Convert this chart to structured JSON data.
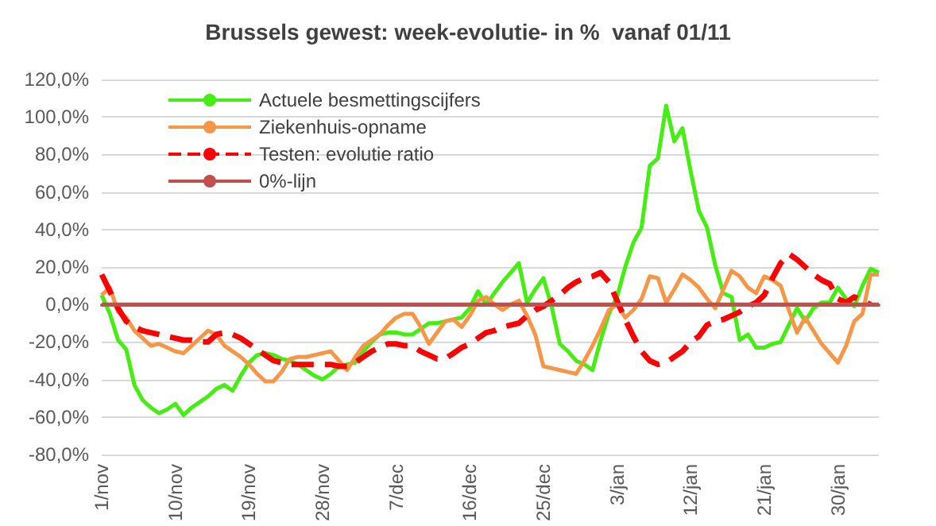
{
  "chart_data": {
    "type": "line",
    "title": "Brussels gewest: week-evolutie- in %  vanaf 01/11",
    "categories": [
      "1/nov",
      null,
      null,
      null,
      null,
      null,
      null,
      null,
      null,
      "10/nov",
      null,
      null,
      null,
      null,
      null,
      null,
      null,
      null,
      "19/nov",
      null,
      null,
      null,
      null,
      null,
      null,
      null,
      null,
      "28/nov",
      null,
      null,
      null,
      null,
      null,
      null,
      null,
      null,
      "7/dec",
      null,
      null,
      null,
      null,
      null,
      null,
      null,
      null,
      "16/dec",
      null,
      null,
      null,
      null,
      null,
      null,
      null,
      null,
      "25/dec",
      null,
      null,
      null,
      null,
      null,
      null,
      null,
      null,
      "3/jan",
      null,
      null,
      null,
      null,
      null,
      null,
      null,
      null,
      "12/jan",
      null,
      null,
      null,
      null,
      null,
      null,
      null,
      null,
      "21/jan",
      null,
      null,
      null,
      null,
      null,
      null,
      null,
      null,
      "30/jan",
      null,
      null,
      null,
      null,
      null
    ],
    "series": [
      {
        "name": "Actuele besmettingscijfers",
        "color": "#44ee11",
        "values": [
          5,
          -5,
          -19,
          -24,
          -43,
          -51,
          -55,
          -58,
          -56,
          -53,
          -59,
          -55,
          -52,
          -49,
          -45,
          -43,
          -46,
          -38,
          -31,
          -27,
          -26,
          -27,
          -29,
          -30,
          -32,
          -35,
          -38,
          -40,
          -37,
          -33,
          -32,
          -31,
          -25,
          -20,
          -16,
          -15,
          -15,
          -16,
          -16,
          -13,
          -10,
          -10,
          -9,
          -8,
          -7,
          -2,
          7,
          0,
          6,
          12,
          17,
          22,
          1,
          8,
          14,
          -1,
          -21,
          -25,
          -30,
          -32,
          -35,
          -19,
          -5,
          4,
          20,
          33,
          41,
          74,
          78,
          106,
          87,
          94,
          71,
          50,
          41,
          21,
          6,
          4,
          -19,
          -16,
          -23,
          -23,
          -21,
          -20,
          -11,
          -2,
          -9,
          -2,
          1,
          1,
          9,
          3,
          -1,
          10,
          19,
          17
        ]
      },
      {
        "name": "Ziekenhuis-opname",
        "color": "#f79646",
        "values": [
          5,
          9,
          -4,
          -7,
          -14,
          -18,
          -22,
          -21,
          -23,
          -25,
          -26,
          -22,
          -18,
          -14,
          -16,
          -22,
          -25,
          -28,
          -32,
          -37,
          -41,
          -41,
          -36,
          -29,
          -28,
          -28,
          -27,
          -26,
          -25,
          -30,
          -35,
          -28,
          -22,
          -19,
          -16,
          -11,
          -7,
          -5,
          -5,
          -12,
          -21,
          -15,
          -9,
          -8,
          -12,
          -6,
          2,
          4,
          0,
          -3,
          0,
          2,
          -6,
          -16,
          -33,
          -34,
          -35,
          -36,
          -37,
          -30,
          -22,
          -13,
          -3,
          0,
          -7,
          -3,
          3,
          15,
          14,
          1,
          8,
          16,
          13,
          9,
          3,
          -2,
          8,
          18,
          15,
          9,
          6,
          15,
          13,
          10,
          -3,
          -15,
          -7,
          -14,
          -21,
          -26,
          -31,
          -22,
          -9,
          -5,
          16,
          16
        ]
      },
      {
        "name": "Testen: evolutie ratio",
        "color": "#ff0000",
        "line_style": "dashed",
        "values": [
          16,
          7,
          -2,
          -9,
          -12,
          -14,
          -15,
          -16,
          -17,
          -18,
          -19,
          -19,
          -20,
          -20,
          -16,
          -15,
          -16,
          -18,
          -21,
          -24,
          -27,
          -30,
          -31,
          -32,
          -32,
          -32,
          -32,
          -32,
          -32,
          -33,
          -33,
          -31,
          -28,
          -25,
          -23,
          -21,
          -21,
          -22,
          -22,
          -25,
          -27,
          -29,
          -29,
          -26,
          -23,
          -21,
          -18,
          -15,
          -14,
          -12,
          -11,
          -10,
          -6,
          -3,
          -1,
          2,
          5,
          9,
          12,
          14,
          15,
          17,
          12,
          2,
          -8,
          -17,
          -25,
          -30,
          -32,
          -31,
          -28,
          -25,
          -20,
          -17,
          -11,
          -9,
          -8,
          -6,
          -4,
          -1,
          1,
          5,
          14,
          22,
          27,
          24,
          20,
          16,
          13,
          11,
          3,
          1,
          4,
          2,
          0,
          null
        ]
      },
      {
        "name": "0%-lijn",
        "color": "#c0504d",
        "values": [
          0,
          0,
          0,
          0,
          0,
          0,
          0,
          0,
          0,
          0,
          0,
          0,
          0,
          0,
          0,
          0,
          0,
          0,
          0,
          0,
          0,
          0,
          0,
          0,
          0,
          0,
          0,
          0,
          0,
          0,
          0,
          0,
          0,
          0,
          0,
          0,
          0,
          0,
          0,
          0,
          0,
          0,
          0,
          0,
          0,
          0,
          0,
          0,
          0,
          0,
          0,
          0,
          0,
          0,
          0,
          0,
          0,
          0,
          0,
          0,
          0,
          0,
          0,
          0,
          0,
          0,
          0,
          0,
          0,
          0,
          0,
          0,
          0,
          0,
          0,
          0,
          0,
          0,
          0,
          0,
          0,
          0,
          0,
          0,
          0,
          0,
          0,
          0,
          0,
          0,
          0,
          0,
          0,
          0,
          0,
          0
        ]
      }
    ],
    "ylim": [
      -80,
      120
    ],
    "yticks": [
      {
        "value": -80,
        "label": "-80,0%"
      },
      {
        "value": -60,
        "label": "-60,0%"
      },
      {
        "value": -40,
        "label": "-40,0%"
      },
      {
        "value": -20,
        "label": "-20,0%"
      },
      {
        "value": 0,
        "label": "0,0%"
      },
      {
        "value": 20,
        "label": "20,0%"
      },
      {
        "value": 40,
        "label": "40,0%"
      },
      {
        "value": 60,
        "label": "60,0%"
      },
      {
        "value": 80,
        "label": "80,0%"
      },
      {
        "value": 100,
        "label": "100,0%"
      },
      {
        "value": 120,
        "label": "120,0%"
      }
    ],
    "grid": "y",
    "legend": "top left"
  }
}
